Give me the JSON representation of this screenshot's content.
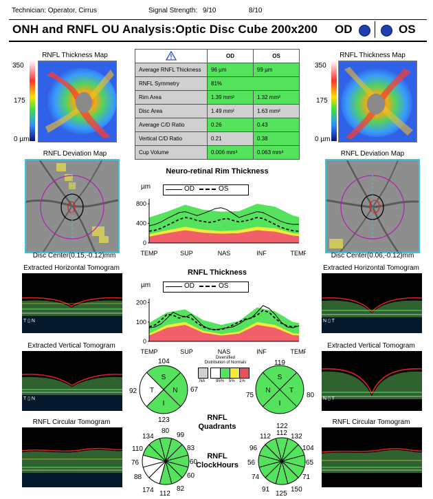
{
  "header": {
    "technician": "Technician: Operator, Cirrus",
    "signal_label": "Signal Strength:",
    "signal_od": "9/10",
    "signal_os": "8/10",
    "title": "ONH and RNFL OU Analysis:Optic Disc Cube 200x200",
    "od": "OD",
    "os": "OS"
  },
  "thickness_map": {
    "title": "RNFL Thickness Map",
    "scale_top": "350",
    "scale_mid": "175",
    "scale_bottom": "0 µm"
  },
  "metrics": {
    "col_od": "OD",
    "col_os": "OS",
    "rows": [
      {
        "label": "Average RNFL Thickness",
        "od": "96 µm",
        "os": "99 µm",
        "od_class": "g",
        "os_class": "g"
      },
      {
        "label": "RNFL Symmetry",
        "od": "81%",
        "os": "",
        "od_class": "g",
        "os_class": "g"
      },
      {
        "label": "Rim Area",
        "od": "1.39 mm²",
        "os": "1.32 mm²",
        "od_class": "g",
        "os_class": "g"
      },
      {
        "label": "Disc Area",
        "od": "1.49 mm²",
        "os": "1.63 mm²",
        "od_class": "gr",
        "os_class": "gr"
      },
      {
        "label": "Average C/D Ratio",
        "od": "0.26",
        "os": "0.43",
        "od_class": "g",
        "os_class": "g"
      },
      {
        "label": "Vertical C/D Ratio",
        "od": "0.21",
        "os": "0.38",
        "od_class": "gr",
        "os_class": "g"
      },
      {
        "label": "Cup Volume",
        "od": "0.006 mm³",
        "os": "0.063 mm³",
        "od_class": "g",
        "os_class": "g"
      }
    ]
  },
  "deviation": {
    "title": "RNFL Deviation Map",
    "od_center": "Disc Center(0.15,-0.12)mm",
    "os_center": "Disc Center(0.06,-0.12)mm"
  },
  "tomograms": {
    "horizontal": "Extracted Horizontal Tomogram",
    "vertical": "Extracted Vertical Tomogram",
    "circular": "RNFL Circular Tomogram"
  },
  "chart_data": [
    {
      "type": "line",
      "title": "Neuro-retinal Rim Thickness",
      "ylabel": "µm",
      "ylim": [
        0,
        900
      ],
      "yticks": [
        "0",
        "400",
        "800"
      ],
      "ytick_values": [
        0,
        400,
        800
      ],
      "xlabels": [
        "TEMP",
        "SUP",
        "NAS",
        "INF",
        "TEMP"
      ],
      "legend": [
        "OD",
        "OS"
      ],
      "x": [
        0,
        10,
        20,
        30,
        40,
        50,
        60,
        70,
        80,
        90,
        100,
        110,
        120,
        130,
        140,
        150,
        160,
        170,
        180,
        190,
        200,
        210,
        220,
        230,
        240,
        250
      ],
      "series": [
        {
          "name": "OD",
          "values": [
            350,
            380,
            430,
            500,
            560,
            620,
            640,
            600,
            560,
            600,
            650,
            700,
            720,
            680,
            600,
            520,
            560,
            600,
            640,
            620,
            560,
            500,
            440,
            400,
            380,
            380
          ]
        },
        {
          "name": "OS",
          "values": [
            240,
            260,
            300,
            360,
            420,
            480,
            520,
            500,
            460,
            440,
            420,
            440,
            480,
            500,
            460,
            430,
            450,
            480,
            520,
            500,
            440,
            380,
            320,
            280,
            250,
            240
          ]
        }
      ],
      "bands": {
        "x": [
          0,
          30,
          60,
          90,
          120,
          150,
          180,
          210,
          240,
          250
        ],
        "red_top": [
          130,
          200,
          260,
          210,
          190,
          200,
          260,
          230,
          150,
          140
        ],
        "yellow_top": [
          180,
          260,
          330,
          270,
          240,
          260,
          330,
          300,
          200,
          190
        ],
        "green_top": [
          520,
          640,
          780,
          680,
          640,
          650,
          800,
          740,
          560,
          530
        ]
      }
    },
    {
      "type": "line",
      "title": "RNFL Thickness",
      "ylabel": "µm",
      "ylim": [
        0,
        220
      ],
      "yticks": [
        "0",
        "100",
        "200"
      ],
      "ytick_values": [
        0,
        100,
        200
      ],
      "xlabels": [
        "TEMP",
        "SUP",
        "NAS",
        "INF",
        "TEMP"
      ],
      "legend": [
        "OD",
        "OS"
      ],
      "x": [
        0,
        10,
        20,
        30,
        40,
        50,
        60,
        70,
        80,
        90,
        100,
        110,
        120,
        130,
        140,
        150,
        160,
        170,
        180,
        190,
        200,
        210,
        220,
        230,
        240,
        250
      ],
      "series": [
        {
          "name": "OD",
          "values": [
            70,
            75,
            90,
            120,
            150,
            135,
            125,
            140,
            110,
            80,
            65,
            60,
            65,
            70,
            75,
            90,
            110,
            120,
            150,
            185,
            170,
            140,
            100,
            75,
            70,
            80
          ]
        },
        {
          "name": "OS",
          "values": [
            75,
            85,
            110,
            140,
            135,
            120,
            130,
            120,
            95,
            75,
            65,
            60,
            62,
            70,
            85,
            100,
            115,
            120,
            135,
            160,
            150,
            120,
            95,
            80,
            75,
            80
          ]
        }
      ],
      "bands": {
        "x": [
          0,
          30,
          60,
          90,
          120,
          150,
          180,
          210,
          240,
          250
        ],
        "red_top": [
          30,
          70,
          85,
          45,
          30,
          40,
          85,
          70,
          32,
          30
        ],
        "yellow_top": [
          40,
          85,
          100,
          55,
          38,
          50,
          100,
          85,
          42,
          40
        ],
        "green_top": [
          95,
          150,
          165,
          110,
          85,
          105,
          175,
          155,
          100,
          95
        ]
      }
    }
  ],
  "quadrants": {
    "label_line1": "RNFL",
    "label_line2": "Quadrants",
    "od": {
      "S": "104",
      "N": "67",
      "I": "123",
      "T": "92",
      "letters": [
        "S",
        "N",
        "I",
        "T"
      ]
    },
    "os": {
      "S": "119",
      "T": "80",
      "I": "122",
      "N": "75",
      "letters": [
        "S",
        "T",
        "I",
        "N"
      ]
    }
  },
  "distribution": {
    "title_line1": "Diversified",
    "title_line2": "Distribution of Normals",
    "labels": [
      "NA",
      "95%",
      "5%",
      "1%"
    ],
    "colors": [
      "#d0d0d0",
      "#ffffff",
      "#55e35e",
      "#f2ea3a",
      "#e8515a"
    ]
  },
  "clockhours": {
    "label_line1": "RNFL",
    "label_line2": "ClockHours",
    "od": [
      "80",
      "99",
      "83",
      "60",
      "60",
      "82",
      "112",
      "174",
      "88",
      "76",
      "110",
      "134"
    ],
    "os": [
      "112",
      "132",
      "104",
      "65",
      "71",
      "150",
      "125",
      "91",
      "74",
      "56",
      "96",
      "112"
    ],
    "od_colors": [
      "g",
      "g",
      "g",
      "g",
      "g",
      "g",
      "g",
      "w",
      "w",
      "w",
      "g",
      "g"
    ],
    "os_colors": [
      "g",
      "g",
      "g",
      "g",
      "g",
      "g",
      "g",
      "g",
      "g",
      "g",
      "g",
      "g"
    ]
  },
  "colors": {
    "green": "#55e35e",
    "red": "#f05f6a",
    "yellow": "#f2ea3a",
    "grey": "#d0d0d0",
    "cyan_frame": "#35c9e0",
    "dot_blue": "#1f3db4"
  }
}
